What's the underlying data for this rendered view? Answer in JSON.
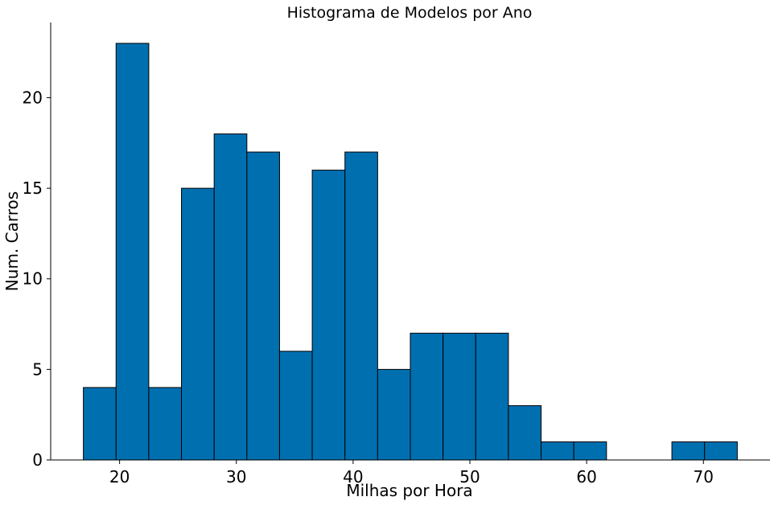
{
  "chart_data": {
    "type": "bar",
    "title": "Histograma de Modelos por Ano",
    "xlabel": "Milhas por Hora",
    "ylabel": "Num. Carros",
    "bar_color": "#006fb0",
    "edge_color": "#000000",
    "bin_edges": [
      16.9,
      19.7,
      22.5,
      25.3,
      28.1,
      30.9,
      33.7,
      36.5,
      39.3,
      42.1,
      44.9,
      47.7,
      50.5,
      53.3,
      56.1,
      58.9,
      61.7,
      64.5,
      67.3,
      70.1,
      72.9
    ],
    "values": [
      4,
      23,
      4,
      15,
      18,
      17,
      6,
      16,
      17,
      5,
      7,
      7,
      7,
      3,
      1,
      1,
      0,
      0,
      1,
      1
    ],
    "xlim": [
      14.1,
      75.7
    ],
    "ylim": [
      0,
      24.15
    ],
    "x_ticks": [
      20,
      30,
      40,
      50,
      60,
      70
    ],
    "x_tick_labels": [
      "20",
      "30",
      "40",
      "50",
      "60",
      "70"
    ],
    "y_ticks": [
      0,
      5,
      10,
      15,
      20
    ],
    "y_tick_labels": [
      "0",
      "5",
      "10",
      "15",
      "20"
    ],
    "grid": false,
    "legend": false
  }
}
